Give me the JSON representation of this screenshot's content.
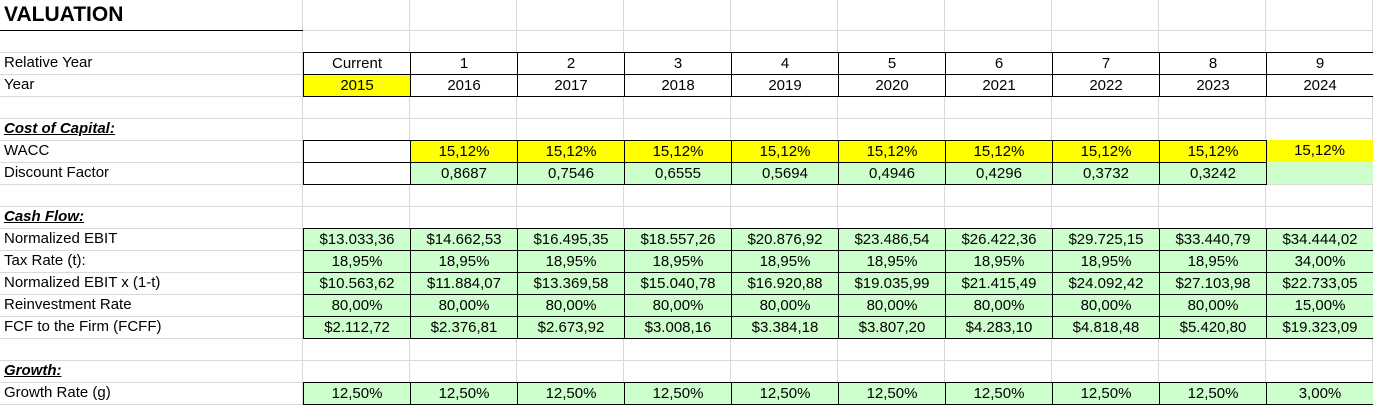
{
  "title": "VALUATION",
  "colors": {
    "yellow": "#FFFF00",
    "green": "#CCFFCC",
    "grid_line": "#D9D9D9",
    "border": "#000000",
    "text": "#000000"
  },
  "column_keys": [
    "current",
    "year1",
    "year2",
    "year3",
    "year4",
    "year5",
    "year6",
    "year7",
    "year8",
    "year9"
  ],
  "rows": [
    {
      "kind": "title",
      "key": "title",
      "label": "VALUATION"
    },
    {
      "kind": "blank"
    },
    {
      "kind": "data",
      "key": "relative-year",
      "label": "Relative Year",
      "cells": [
        {
          "v": "Current",
          "s": "w"
        },
        {
          "v": "1",
          "s": "w"
        },
        {
          "v": "2",
          "s": "w"
        },
        {
          "v": "3",
          "s": "w"
        },
        {
          "v": "4",
          "s": "w"
        },
        {
          "v": "5",
          "s": "w"
        },
        {
          "v": "6",
          "s": "w"
        },
        {
          "v": "7",
          "s": "w"
        },
        {
          "v": "8",
          "s": "w"
        },
        {
          "v": "9",
          "s": "w"
        }
      ]
    },
    {
      "kind": "data",
      "key": "year",
      "label": "Year",
      "cells": [
        {
          "v": "2015",
          "s": "y"
        },
        {
          "v": "2016",
          "s": "w"
        },
        {
          "v": "2017",
          "s": "w"
        },
        {
          "v": "2018",
          "s": "w"
        },
        {
          "v": "2019",
          "s": "w"
        },
        {
          "v": "2020",
          "s": "w"
        },
        {
          "v": "2021",
          "s": "w"
        },
        {
          "v": "2022",
          "s": "w"
        },
        {
          "v": "2023",
          "s": "w"
        },
        {
          "v": "2024",
          "s": "w"
        }
      ]
    },
    {
      "kind": "blank"
    },
    {
      "kind": "section",
      "key": "cost-of-capital",
      "label": "Cost of Capital:"
    },
    {
      "kind": "data",
      "key": "wacc",
      "label": "WACC",
      "cells": [
        {
          "v": "",
          "s": "w"
        },
        {
          "v": "15,12%",
          "s": "y"
        },
        {
          "v": "15,12%",
          "s": "y"
        },
        {
          "v": "15,12%",
          "s": "y"
        },
        {
          "v": "15,12%",
          "s": "y"
        },
        {
          "v": "15,12%",
          "s": "y"
        },
        {
          "v": "15,12%",
          "s": "y"
        },
        {
          "v": "15,12%",
          "s": "y"
        },
        {
          "v": "15,12%",
          "s": "y"
        },
        {
          "v": "15,12%",
          "s": "yf"
        }
      ]
    },
    {
      "kind": "data",
      "key": "discount-factor",
      "label": "Discount Factor",
      "cells": [
        {
          "v": "",
          "s": "w"
        },
        {
          "v": "0,8687",
          "s": "g"
        },
        {
          "v": "0,7546",
          "s": "g"
        },
        {
          "v": "0,6555",
          "s": "g"
        },
        {
          "v": "0,5694",
          "s": "g"
        },
        {
          "v": "0,4946",
          "s": "g"
        },
        {
          "v": "0,4296",
          "s": "g"
        },
        {
          "v": "0,3732",
          "s": "g"
        },
        {
          "v": "0,3242",
          "s": "g"
        },
        {
          "v": "",
          "s": "gf"
        }
      ]
    },
    {
      "kind": "blank"
    },
    {
      "kind": "section",
      "key": "cash-flow",
      "label": "Cash Flow:"
    },
    {
      "kind": "data",
      "key": "normalized-ebit",
      "label": "Normalized EBIT",
      "cells": [
        {
          "v": "$13.033,36",
          "s": "g"
        },
        {
          "v": "$14.662,53",
          "s": "g"
        },
        {
          "v": "$16.495,35",
          "s": "g"
        },
        {
          "v": "$18.557,26",
          "s": "g"
        },
        {
          "v": "$20.876,92",
          "s": "g"
        },
        {
          "v": "$23.486,54",
          "s": "g"
        },
        {
          "v": "$26.422,36",
          "s": "g"
        },
        {
          "v": "$29.725,15",
          "s": "g"
        },
        {
          "v": "$33.440,79",
          "s": "g"
        },
        {
          "v": "$34.444,02",
          "s": "g"
        }
      ]
    },
    {
      "kind": "data",
      "key": "tax-rate",
      "label": "Tax Rate (t):",
      "cells": [
        {
          "v": "18,95%",
          "s": "g"
        },
        {
          "v": "18,95%",
          "s": "g"
        },
        {
          "v": "18,95%",
          "s": "g"
        },
        {
          "v": "18,95%",
          "s": "g"
        },
        {
          "v": "18,95%",
          "s": "g"
        },
        {
          "v": "18,95%",
          "s": "g"
        },
        {
          "v": "18,95%",
          "s": "g"
        },
        {
          "v": "18,95%",
          "s": "g"
        },
        {
          "v": "18,95%",
          "s": "g"
        },
        {
          "v": "34,00%",
          "s": "g"
        }
      ]
    },
    {
      "kind": "data",
      "key": "ebit-after-tax",
      "label": "Normalized EBIT x (1-t)",
      "cells": [
        {
          "v": "$10.563,62",
          "s": "g"
        },
        {
          "v": "$11.884,07",
          "s": "g"
        },
        {
          "v": "$13.369,58",
          "s": "g"
        },
        {
          "v": "$15.040,78",
          "s": "g"
        },
        {
          "v": "$16.920,88",
          "s": "g"
        },
        {
          "v": "$19.035,99",
          "s": "g"
        },
        {
          "v": "$21.415,49",
          "s": "g"
        },
        {
          "v": "$24.092,42",
          "s": "g"
        },
        {
          "v": "$27.103,98",
          "s": "g"
        },
        {
          "v": "$22.733,05",
          "s": "g"
        }
      ]
    },
    {
      "kind": "data",
      "key": "reinvestment-rate",
      "label": "Reinvestment Rate",
      "cells": [
        {
          "v": "80,00%",
          "s": "g"
        },
        {
          "v": "80,00%",
          "s": "g"
        },
        {
          "v": "80,00%",
          "s": "g"
        },
        {
          "v": "80,00%",
          "s": "g"
        },
        {
          "v": "80,00%",
          "s": "g"
        },
        {
          "v": "80,00%",
          "s": "g"
        },
        {
          "v": "80,00%",
          "s": "g"
        },
        {
          "v": "80,00%",
          "s": "g"
        },
        {
          "v": "80,00%",
          "s": "g"
        },
        {
          "v": "15,00%",
          "s": "g"
        }
      ]
    },
    {
      "kind": "data",
      "key": "fcff",
      "label": "FCF to the Firm (FCFF)",
      "cells": [
        {
          "v": "$2.112,72",
          "s": "g"
        },
        {
          "v": "$2.376,81",
          "s": "g"
        },
        {
          "v": "$2.673,92",
          "s": "g"
        },
        {
          "v": "$3.008,16",
          "s": "g"
        },
        {
          "v": "$3.384,18",
          "s": "g"
        },
        {
          "v": "$3.807,20",
          "s": "g"
        },
        {
          "v": "$4.283,10",
          "s": "g"
        },
        {
          "v": "$4.818,48",
          "s": "g"
        },
        {
          "v": "$5.420,80",
          "s": "g"
        },
        {
          "v": "$19.323,09",
          "s": "g"
        }
      ]
    },
    {
      "kind": "blank"
    },
    {
      "kind": "section",
      "key": "growth",
      "label": "Growth:"
    },
    {
      "kind": "data",
      "key": "growth-rate",
      "label": "Growth Rate (g)",
      "cells": [
        {
          "v": "12,50%",
          "s": "g"
        },
        {
          "v": "12,50%",
          "s": "g"
        },
        {
          "v": "12,50%",
          "s": "g"
        },
        {
          "v": "12,50%",
          "s": "g"
        },
        {
          "v": "12,50%",
          "s": "g"
        },
        {
          "v": "12,50%",
          "s": "g"
        },
        {
          "v": "12,50%",
          "s": "g"
        },
        {
          "v": "12,50%",
          "s": "g"
        },
        {
          "v": "12,50%",
          "s": "g"
        },
        {
          "v": "3,00%",
          "s": "g"
        }
      ]
    }
  ]
}
